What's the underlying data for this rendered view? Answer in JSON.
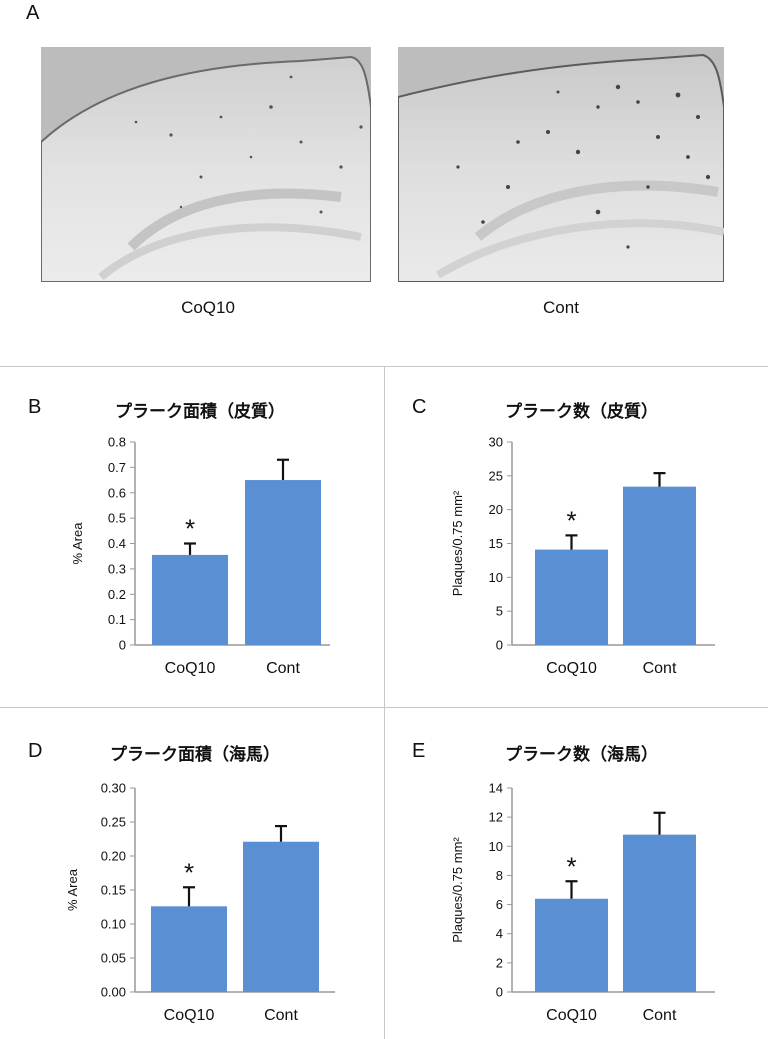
{
  "panel_a": {
    "letter": "A",
    "images": [
      {
        "caption": "CoQ10"
      },
      {
        "caption": "Cont"
      }
    ]
  },
  "chart_data": [
    {
      "letter": "B",
      "type": "bar",
      "title": "プラーク面積（皮質）",
      "ylabel": "% Area",
      "categories": [
        "CoQ10",
        "Cont"
      ],
      "values": [
        0.355,
        0.65
      ],
      "errors": [
        0.045,
        0.08
      ],
      "significance": [
        "*",
        ""
      ],
      "ylim": [
        0,
        0.8
      ],
      "yticks": [
        "0",
        "0.1",
        "0.2",
        "0.3",
        "0.4",
        "0.5",
        "0.6",
        "0.7",
        "0.8"
      ],
      "ytick_values": [
        0,
        0.1,
        0.2,
        0.3,
        0.4,
        0.5,
        0.6,
        0.7,
        0.8
      ],
      "bar_color": "#5b8fd4"
    },
    {
      "letter": "C",
      "type": "bar",
      "title": "プラーク数（皮質）",
      "ylabel": "Plaques/0.75 mm²",
      "categories": [
        "CoQ10",
        "Cont"
      ],
      "values": [
        14.1,
        23.4
      ],
      "errors": [
        2.1,
        2.0
      ],
      "significance": [
        "*",
        ""
      ],
      "ylim": [
        0,
        30
      ],
      "yticks": [
        "0",
        "5",
        "10",
        "15",
        "20",
        "25",
        "30"
      ],
      "ytick_values": [
        0,
        5,
        10,
        15,
        20,
        25,
        30
      ],
      "bar_color": "#5b8fd4"
    },
    {
      "letter": "D",
      "type": "bar",
      "title": "プラーク面積（海馬）",
      "ylabel": "% Area",
      "categories": [
        "CoQ10",
        "Cont"
      ],
      "values": [
        0.126,
        0.221
      ],
      "errors": [
        0.028,
        0.023
      ],
      "significance": [
        "*",
        ""
      ],
      "ylim": [
        0,
        0.3
      ],
      "yticks": [
        "0.00",
        "0.05",
        "0.10",
        "0.15",
        "0.20",
        "0.25",
        "0.30"
      ],
      "ytick_values": [
        0,
        0.05,
        0.1,
        0.15,
        0.2,
        0.25,
        0.3
      ],
      "bar_color": "#5b8fd4"
    },
    {
      "letter": "E",
      "type": "bar",
      "title": "プラーク数（海馬）",
      "ylabel": "Plaques/0.75 mm²",
      "categories": [
        "CoQ10",
        "Cont"
      ],
      "values": [
        6.4,
        10.8
      ],
      "errors": [
        1.2,
        1.5
      ],
      "significance": [
        "*",
        ""
      ],
      "ylim": [
        0,
        14
      ],
      "yticks": [
        "0",
        "2",
        "4",
        "6",
        "8",
        "10",
        "12",
        "14"
      ],
      "ytick_values": [
        0,
        2,
        4,
        6,
        8,
        10,
        12,
        14
      ],
      "bar_color": "#5b8fd4"
    }
  ]
}
